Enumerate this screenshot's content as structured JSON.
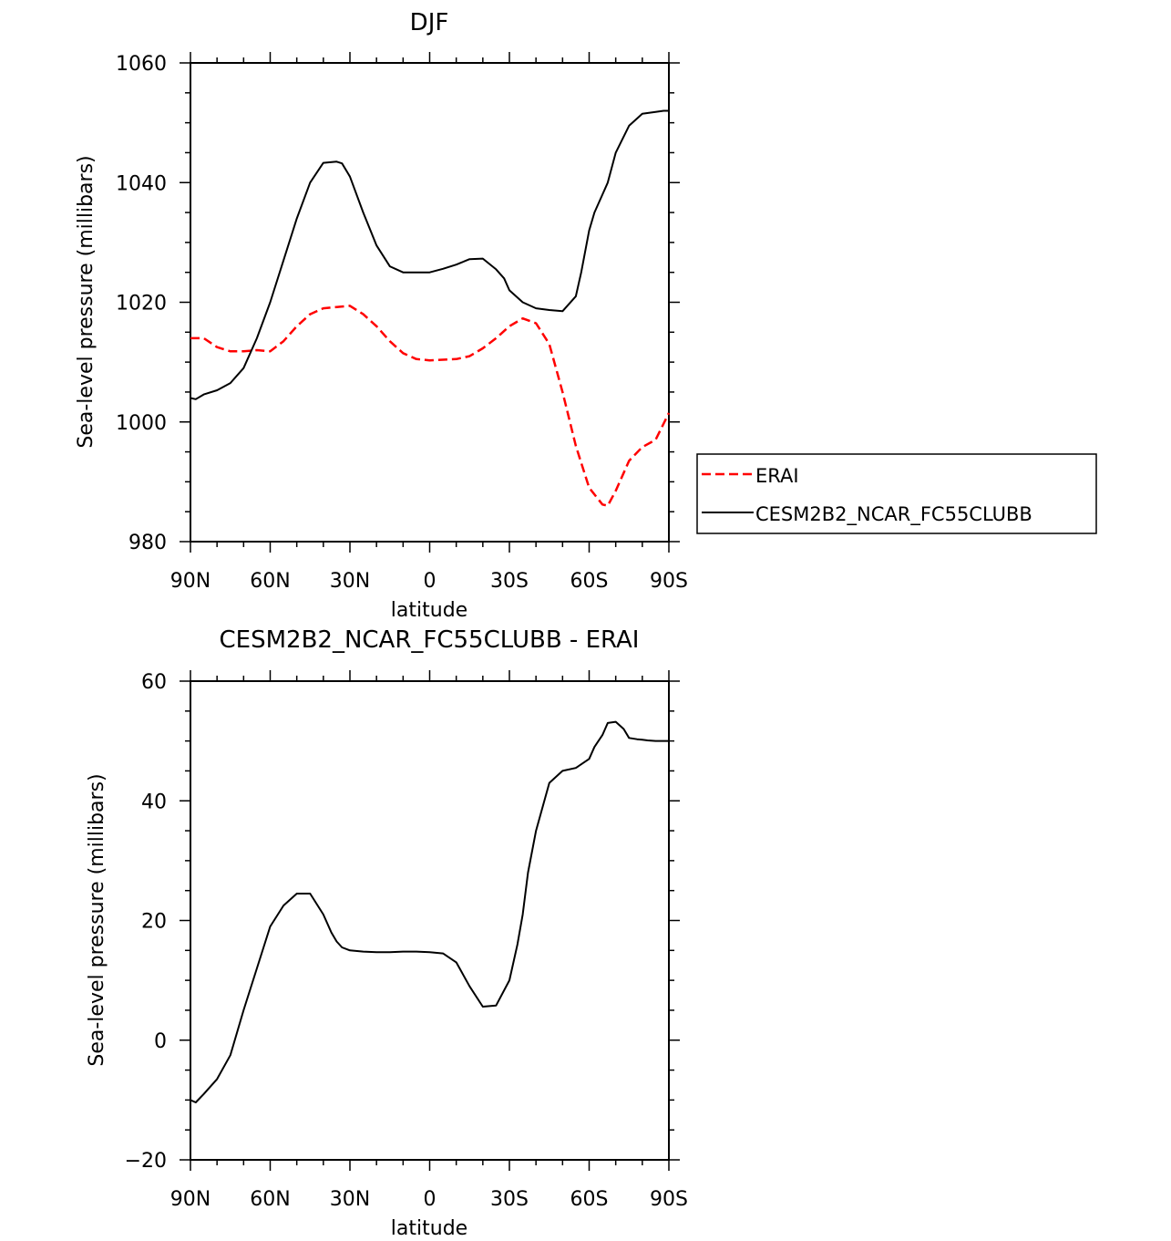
{
  "chart_data": [
    {
      "type": "line",
      "title": "DJF",
      "xlabel": "latitude",
      "ylabel": "Sea-level pressure (millibars)",
      "xlim": [
        -90,
        90
      ],
      "ylim": [
        980,
        1060
      ],
      "x_ticks": [
        -90,
        -60,
        -30,
        0,
        30,
        60,
        90
      ],
      "x_tick_labels": [
        "90N",
        "60N",
        "30N",
        "0",
        "30S",
        "60S",
        "90S"
      ],
      "y_ticks": [
        980,
        1000,
        1020,
        1040,
        1060
      ],
      "y_tick_labels": [
        "980",
        "1000",
        "1020",
        "1040",
        "1060"
      ],
      "legend": {
        "position": "right"
      },
      "series": [
        {
          "name": "ERAI",
          "color": "#ff0000",
          "dash": "dashed",
          "x": [
            -90,
            -85,
            -80,
            -75,
            -70,
            -65,
            -60,
            -55,
            -50,
            -45,
            -40,
            -35,
            -30,
            -25,
            -20,
            -15,
            -10,
            -5,
            0,
            5,
            10,
            15,
            20,
            25,
            30,
            35,
            40,
            45,
            50,
            55,
            60,
            65,
            67,
            70,
            75,
            80,
            85,
            90
          ],
          "y": [
            1014,
            1014,
            1012.5,
            1011.8,
            1011.8,
            1012,
            1011.8,
            1013.5,
            1016,
            1018,
            1019,
            1019.2,
            1019.4,
            1018,
            1016,
            1013.5,
            1011.5,
            1010.5,
            1010.3,
            1010.4,
            1010.5,
            1011,
            1012.3,
            1014,
            1016,
            1017.3,
            1016.5,
            1013,
            1005,
            996,
            989,
            986.2,
            986,
            988.5,
            993.5,
            995.8,
            997,
            1001.5
          ]
        },
        {
          "name": "CESM2B2_NCAR_FC55CLUBB",
          "color": "#000000",
          "dash": "solid",
          "x": [
            -90,
            -88,
            -85,
            -80,
            -75,
            -70,
            -65,
            -60,
            -55,
            -50,
            -45,
            -40,
            -35,
            -33,
            -30,
            -25,
            -20,
            -15,
            -10,
            -5,
            0,
            5,
            10,
            15,
            20,
            25,
            28,
            30,
            35,
            40,
            45,
            50,
            55,
            57,
            60,
            62,
            65,
            67,
            70,
            75,
            80,
            85,
            88,
            90
          ],
          "y": [
            1004,
            1003.8,
            1004.6,
            1005.3,
            1006.5,
            1009,
            1014,
            1020,
            1027,
            1034,
            1040,
            1043.3,
            1043.5,
            1043.2,
            1041,
            1035,
            1029.5,
            1026,
            1025,
            1025,
            1025,
            1025.6,
            1026.3,
            1027.2,
            1027.3,
            1025.5,
            1024,
            1022,
            1020,
            1019,
            1018.7,
            1018.5,
            1021,
            1025,
            1032,
            1035,
            1038,
            1040,
            1045,
            1049.5,
            1051.5,
            1051.8,
            1052,
            1052
          ]
        }
      ]
    },
    {
      "type": "line",
      "title": "CESM2B2_NCAR_FC55CLUBB - ERAI",
      "xlabel": "latitude",
      "ylabel": "Sea-level pressure (millibars)",
      "xlim": [
        -90,
        90
      ],
      "ylim": [
        -20,
        60
      ],
      "x_ticks": [
        -90,
        -60,
        -30,
        0,
        30,
        60,
        90
      ],
      "x_tick_labels": [
        "90N",
        "60N",
        "30N",
        "0",
        "30S",
        "60S",
        "90S"
      ],
      "y_ticks": [
        -20,
        0,
        20,
        40,
        60
      ],
      "y_tick_labels": [
        "−20",
        "0",
        "20",
        "40",
        "60"
      ],
      "series": [
        {
          "name": "CESM2B2_NCAR_FC55CLUBB - ERAI",
          "color": "#000000",
          "dash": "solid",
          "x": [
            -90,
            -88,
            -85,
            -80,
            -75,
            -70,
            -65,
            -60,
            -55,
            -50,
            -45,
            -40,
            -37,
            -35,
            -33,
            -30,
            -25,
            -20,
            -15,
            -10,
            -5,
            0,
            5,
            10,
            15,
            20,
            25,
            30,
            33,
            35,
            37,
            40,
            45,
            50,
            55,
            60,
            62,
            65,
            67,
            70,
            73,
            75,
            78,
            80,
            82,
            85,
            88,
            90
          ],
          "y": [
            -10,
            -10.4,
            -9,
            -6.5,
            -2.5,
            5,
            12,
            19,
            22.5,
            24.5,
            24.5,
            21,
            18,
            16.5,
            15.5,
            15,
            14.8,
            14.7,
            14.7,
            14.8,
            14.8,
            14.7,
            14.5,
            13,
            9,
            5.6,
            5.8,
            10,
            16,
            21,
            28,
            35,
            43,
            45,
            45.5,
            47,
            49,
            51,
            53,
            53.2,
            52,
            50.5,
            50.3,
            50.2,
            50.1,
            50,
            50,
            50
          ]
        }
      ]
    }
  ],
  "legend": {
    "items": [
      {
        "label": "ERAI"
      },
      {
        "label": "CESM2B2_NCAR_FC55CLUBB"
      }
    ]
  }
}
